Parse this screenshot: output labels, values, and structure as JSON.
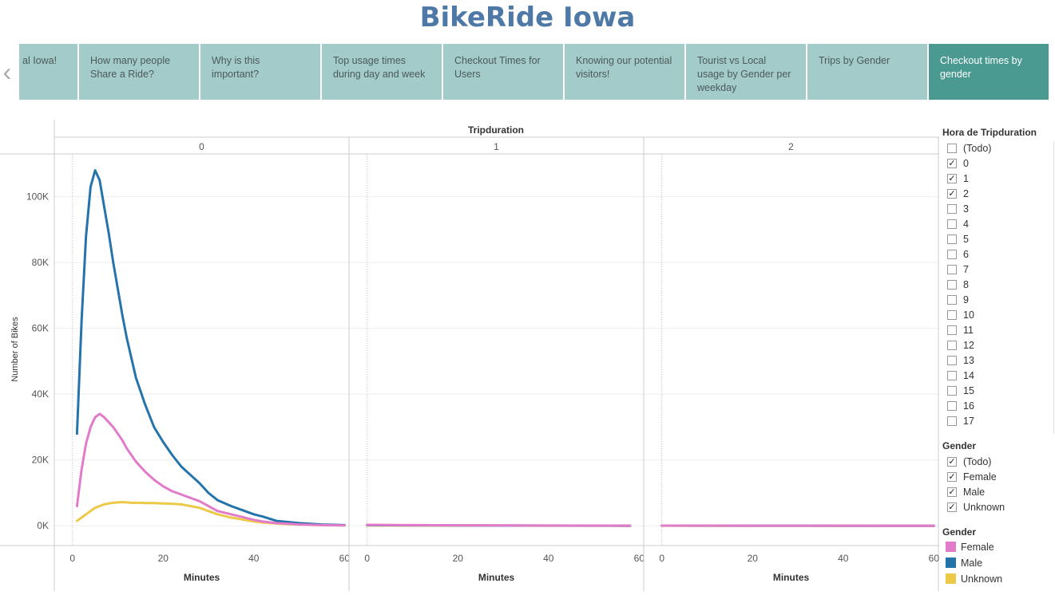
{
  "title": "BikeRide Iowa",
  "story": {
    "points": [
      {
        "label": "al Iowa!",
        "active": false
      },
      {
        "label": "How many people Share a Ride?",
        "active": false
      },
      {
        "label": "Why is this important?",
        "active": false
      },
      {
        "label": "Top usage times during day and week",
        "active": false
      },
      {
        "label": "Checkout Times for Users",
        "active": false
      },
      {
        "label": "Knowing our potential visitors!",
        "active": false
      },
      {
        "label": "Tourist vs Local usage by Gender per weekday",
        "active": false
      },
      {
        "label": "Trips by Gender",
        "active": false
      },
      {
        "label": "Checkout times by gender",
        "active": true
      }
    ],
    "prev_arrow": "‹"
  },
  "filters": {
    "hour": {
      "title": "Hora de Tripduration",
      "items": [
        {
          "label": "(Todo)",
          "checked": false
        },
        {
          "label": "0",
          "checked": true
        },
        {
          "label": "1",
          "checked": true
        },
        {
          "label": "2",
          "checked": true
        },
        {
          "label": "3",
          "checked": false
        },
        {
          "label": "4",
          "checked": false
        },
        {
          "label": "5",
          "checked": false
        },
        {
          "label": "6",
          "checked": false
        },
        {
          "label": "7",
          "checked": false
        },
        {
          "label": "8",
          "checked": false
        },
        {
          "label": "9",
          "checked": false
        },
        {
          "label": "10",
          "checked": false
        },
        {
          "label": "11",
          "checked": false
        },
        {
          "label": "12",
          "checked": false
        },
        {
          "label": "13",
          "checked": false
        },
        {
          "label": "14",
          "checked": false
        },
        {
          "label": "15",
          "checked": false
        },
        {
          "label": "16",
          "checked": false
        },
        {
          "label": "17",
          "checked": false
        }
      ]
    },
    "gender": {
      "title": "Gender",
      "items": [
        {
          "label": "(Todo)",
          "checked": true
        },
        {
          "label": "Female",
          "checked": true
        },
        {
          "label": "Male",
          "checked": true
        },
        {
          "label": "Unknown",
          "checked": true
        }
      ]
    }
  },
  "legend": {
    "title": "Gender",
    "items": [
      {
        "label": "Female",
        "color": "#e27bc9"
      },
      {
        "label": "Male",
        "color": "#2474ab"
      },
      {
        "label": "Unknown",
        "color": "#edc948"
      }
    ]
  },
  "chart_data": {
    "type": "line",
    "header": "Tripduration",
    "panels": [
      {
        "label": "0",
        "series": [
          {
            "name": "Male",
            "color": "#2474ab",
            "x": [
              1,
              2,
              3,
              4,
              5,
              6,
              7,
              8,
              9,
              10,
              11,
              12,
              13,
              14,
              15,
              16,
              18,
              20,
              22,
              24,
              26,
              28,
              30,
              32,
              35,
              38,
              40,
              42,
              45,
              48,
              50,
              55,
              60
            ],
            "y": [
              28000,
              62000,
              88000,
              103000,
              108000,
              105000,
              97000,
              89000,
              80000,
              72000,
              64000,
              57000,
              51000,
              45000,
              41000,
              37000,
              30000,
              25500,
              21500,
              18000,
              15500,
              13000,
              10000,
              7800,
              6000,
              4500,
              3500,
              2800,
              1500,
              1100,
              800,
              400,
              200
            ]
          },
          {
            "name": "Female",
            "color": "#e27bc9",
            "x": [
              1,
              2,
              3,
              4,
              5,
              6,
              7,
              8,
              9,
              10,
              11,
              12,
              13,
              14,
              15,
              16,
              18,
              20,
              22,
              24,
              26,
              28,
              30,
              32,
              35,
              38,
              40,
              42,
              45,
              48,
              50,
              55,
              60
            ],
            "y": [
              6000,
              17000,
              25000,
              30000,
              33000,
              34000,
              33000,
              31500,
              30000,
              28000,
              26000,
              23500,
              21500,
              19500,
              18000,
              16500,
              14000,
              12000,
              10500,
              9500,
              8500,
              7500,
              6000,
              4500,
              3500,
              2500,
              1800,
              1300,
              800,
              600,
              400,
              200,
              100
            ]
          },
          {
            "name": "Unknown",
            "color": "#edc948",
            "x": [
              1,
              2,
              3,
              4,
              5,
              6,
              7,
              8,
              9,
              10,
              11,
              12,
              13,
              14,
              15,
              16,
              18,
              20,
              22,
              24,
              26,
              28,
              30,
              32,
              35,
              38,
              40,
              42,
              45,
              48,
              50,
              55,
              60
            ],
            "y": [
              1500,
              2500,
              3500,
              4500,
              5500,
              6000,
              6500,
              6800,
              7000,
              7100,
              7200,
              7100,
              7000,
              7000,
              7000,
              6900,
              6900,
              6800,
              6700,
              6500,
              6000,
              5500,
              4500,
              3500,
              2500,
              1800,
              1300,
              1000,
              700,
              500,
              400,
              200,
              100
            ]
          }
        ]
      },
      {
        "label": "1",
        "series": [
          {
            "name": "Male",
            "color": "#2474ab",
            "x": [
              0,
              10,
              20,
              30,
              40,
              50,
              58
            ],
            "y": [
              200,
              150,
              100,
              80,
              50,
              30,
              20
            ]
          },
          {
            "name": "Female",
            "color": "#e27bc9",
            "x": [
              0,
              10,
              20,
              30,
              40,
              50,
              58
            ],
            "y": [
              300,
              200,
              150,
              100,
              80,
              50,
              30
            ]
          },
          {
            "name": "Unknown",
            "color": "#edc948",
            "x": [
              0,
              10,
              20,
              30,
              40,
              50,
              58
            ],
            "y": [
              100,
              80,
              60,
              50,
              40,
              30,
              20
            ]
          }
        ]
      },
      {
        "label": "2",
        "series": [
          {
            "name": "Male",
            "color": "#2474ab",
            "x": [
              0,
              10,
              20,
              30,
              40,
              50,
              60
            ],
            "y": [
              50,
              40,
              30,
              30,
              20,
              20,
              10
            ]
          },
          {
            "name": "Female",
            "color": "#e27bc9",
            "x": [
              0,
              10,
              20,
              30,
              40,
              50,
              60
            ],
            "y": [
              60,
              50,
              40,
              30,
              30,
              20,
              10
            ]
          },
          {
            "name": "Unknown",
            "color": "#edc948",
            "x": [
              0,
              10,
              20,
              30,
              40,
              50,
              60
            ],
            "y": [
              30,
              20,
              20,
              10,
              10,
              10,
              10
            ]
          }
        ]
      }
    ],
    "xlabel": "Minutes",
    "ylabel": "Number of Bikes",
    "xticks": [
      0,
      20,
      40,
      60
    ],
    "yticks": [
      0,
      20000,
      40000,
      60000,
      80000,
      100000
    ],
    "ytick_labels": [
      "0K",
      "20K",
      "40K",
      "60K",
      "80K",
      "100K"
    ],
    "xticks_text": [
      "0",
      "20",
      "40",
      "60"
    ],
    "xlim": [
      -4,
      61
    ],
    "ylim": [
      -6000,
      113000
    ],
    "grid": true
  }
}
